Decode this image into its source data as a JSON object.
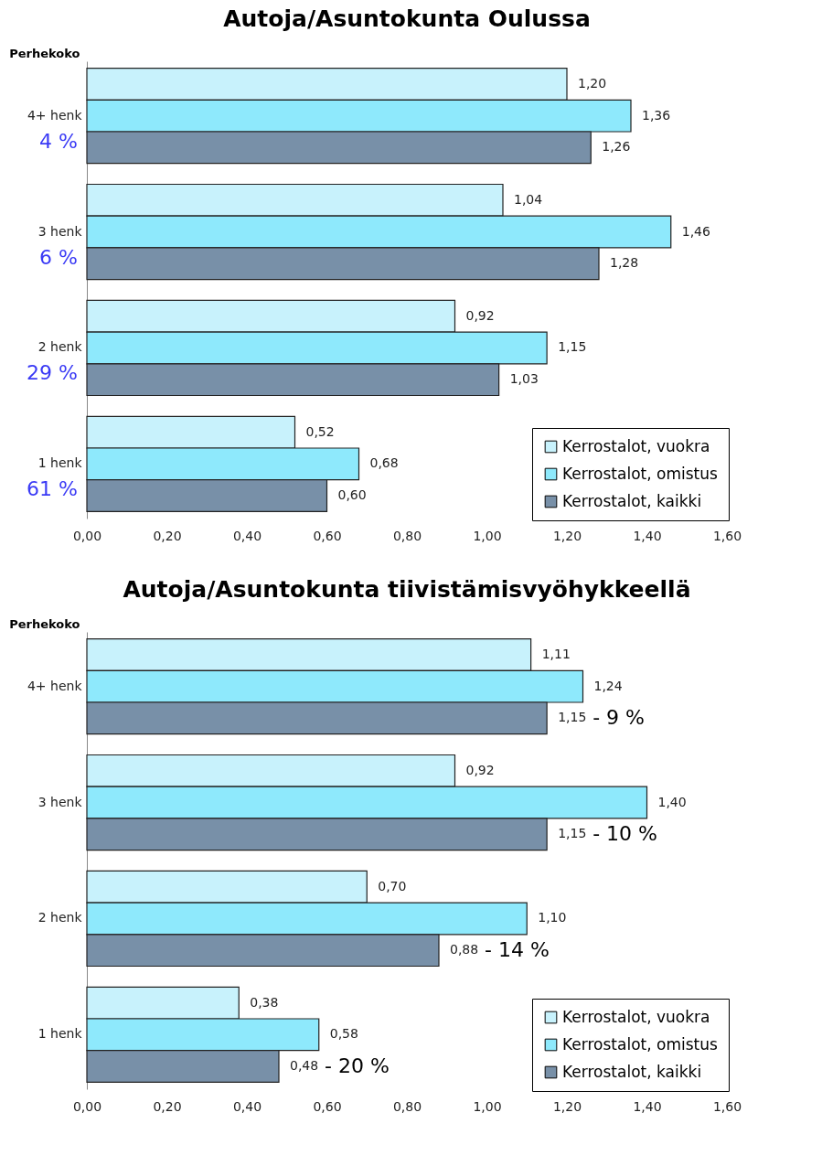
{
  "chart_data": [
    {
      "type": "bar",
      "orientation": "horizontal",
      "title": "Autoja/Asuntokunta  Oulussa",
      "ylabel": "Perhekoko",
      "categories": [
        "4+ henk",
        "3 henk",
        "2 henk",
        "1 henk"
      ],
      "series": [
        {
          "name": "Kerrostalot, vuokra",
          "color": "#c8f2fc",
          "values": [
            1.2,
            1.04,
            0.92,
            0.52
          ],
          "value_labels": [
            "1,20",
            "1,04",
            "0,92",
            "0,52"
          ]
        },
        {
          "name": "Kerrostalot, omistus",
          "color": "#8ee9fc",
          "values": [
            1.36,
            1.46,
            1.15,
            0.68
          ],
          "value_labels": [
            "1,36",
            "1,46",
            "1,15",
            "0,68"
          ]
        },
        {
          "name": "Kerrostalot, kaikki",
          "color": "#7890a8",
          "values": [
            1.26,
            1.28,
            1.03,
            0.6
          ],
          "value_labels": [
            "1,26",
            "1,28",
            "1,03",
            "0,60"
          ]
        }
      ],
      "xlim": [
        0,
        1.6
      ],
      "xticks": [
        {
          "value": 0,
          "label": "0,00"
        },
        {
          "value": 0.2,
          "label": "0,20"
        },
        {
          "value": 0.4,
          "label": "0,40"
        },
        {
          "value": 0.6,
          "label": "0,60"
        },
        {
          "value": 0.8,
          "label": "0,80"
        },
        {
          "value": 1,
          "label": "1,00"
        },
        {
          "value": 1.2,
          "label": "1,20"
        },
        {
          "value": 1.4,
          "label": "1,40"
        },
        {
          "value": 1.6,
          "label": "1,60"
        }
      ],
      "annotations": [
        "4 %",
        "6 %",
        "29 %",
        "61 %"
      ],
      "legend": "bottom right",
      "grid": false
    },
    {
      "type": "bar",
      "orientation": "horizontal",
      "title": "Autoja/Asuntokunta  tiivistämisvyöhykkeellä",
      "ylabel": "Perhekoko",
      "categories": [
        "4+ henk",
        "3 henk",
        "2 henk",
        "1 henk"
      ],
      "series": [
        {
          "name": "Kerrostalot, vuokra",
          "color": "#c8f2fc",
          "values": [
            1.11,
            0.92,
            0.7,
            0.38
          ],
          "value_labels": [
            "1,11",
            "0,92",
            "0,70",
            "0,38"
          ]
        },
        {
          "name": "Kerrostalot, omistus",
          "color": "#8ee9fc",
          "values": [
            1.24,
            1.4,
            1.1,
            0.58
          ],
          "value_labels": [
            "1,24",
            "1,40",
            "1,10",
            "0,58"
          ]
        },
        {
          "name": "Kerrostalot, kaikki",
          "color": "#7890a8",
          "values": [
            1.15,
            1.15,
            0.88,
            0.48
          ],
          "value_labels": [
            "1,15",
            "1,15",
            "0,88",
            "0,48"
          ]
        }
      ],
      "xlim": [
        0,
        1.6
      ],
      "xticks": [
        {
          "value": 0,
          "label": "0,00"
        },
        {
          "value": 0.2,
          "label": "0,20"
        },
        {
          "value": 0.4,
          "label": "0,40"
        },
        {
          "value": 0.6,
          "label": "0,60"
        },
        {
          "value": 0.8,
          "label": "0,80"
        },
        {
          "value": 1,
          "label": "1,00"
        },
        {
          "value": 1.2,
          "label": "1,20"
        },
        {
          "value": 1.4,
          "label": "1,40"
        },
        {
          "value": 1.6,
          "label": "1,60"
        }
      ],
      "annotations": [
        "- 9 %",
        "- 10 %",
        "- 14 %",
        "- 20 %"
      ],
      "legend": "bottom right",
      "grid": false
    }
  ]
}
